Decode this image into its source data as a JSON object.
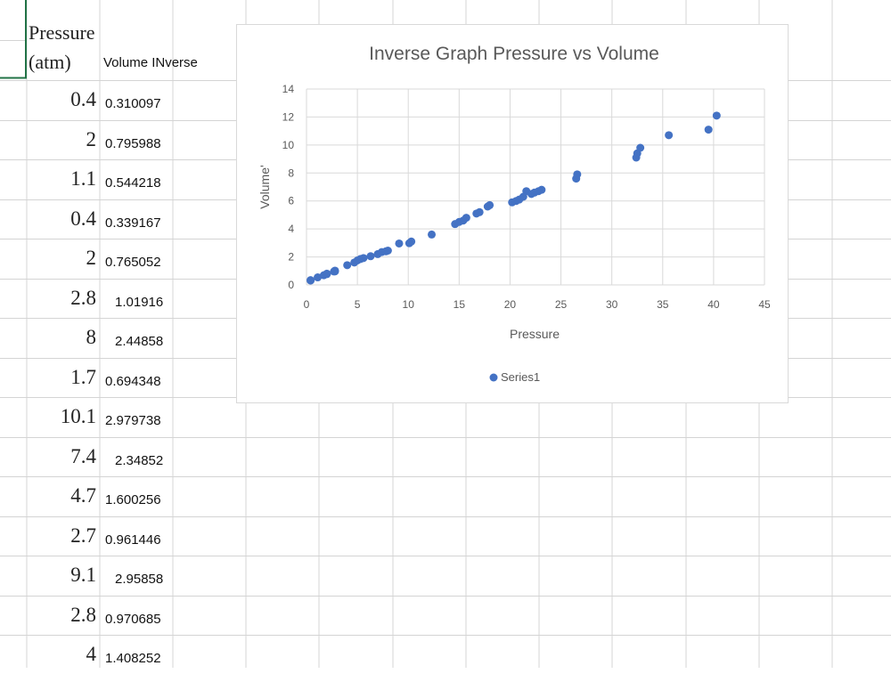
{
  "sheet": {
    "header_a": "Pressure (atm)",
    "header_b": "Volume INverse",
    "rows": [
      {
        "pressure": "0.4",
        "volume_inverse": "0.310097"
      },
      {
        "pressure": "2",
        "volume_inverse": "0.795988"
      },
      {
        "pressure": "1.1",
        "volume_inverse": "0.544218"
      },
      {
        "pressure": "0.4",
        "volume_inverse": "0.339167"
      },
      {
        "pressure": "2",
        "volume_inverse": "0.765052"
      },
      {
        "pressure": "2.8",
        "volume_inverse": "1.01916"
      },
      {
        "pressure": "8",
        "volume_inverse": "2.44858"
      },
      {
        "pressure": "1.7",
        "volume_inverse": "0.694348"
      },
      {
        "pressure": "10.1",
        "volume_inverse": "2.979738"
      },
      {
        "pressure": "7.4",
        "volume_inverse": "2.34852"
      },
      {
        "pressure": "4.7",
        "volume_inverse": "1.600256"
      },
      {
        "pressure": "2.7",
        "volume_inverse": "0.961446"
      },
      {
        "pressure": "9.1",
        "volume_inverse": "2.95858"
      },
      {
        "pressure": "2.8",
        "volume_inverse": "0.970685"
      },
      {
        "pressure": "4",
        "volume_inverse": "1.408252"
      }
    ]
  },
  "chart_data": {
    "type": "scatter",
    "title": "Inverse Graph Pressure vs Volume",
    "xlabel": "Pressure",
    "ylabel": "Volume'",
    "xlim": [
      0,
      45
    ],
    "ylim": [
      0,
      14
    ],
    "xticks": [
      0,
      5,
      10,
      15,
      20,
      25,
      30,
      35,
      40,
      45
    ],
    "yticks": [
      0,
      2,
      4,
      6,
      8,
      10,
      12,
      14
    ],
    "grid": true,
    "legend_position": "bottom",
    "series": [
      {
        "name": "Series1",
        "color": "#4472c4",
        "x": [
          0.4,
          0.4,
          1.1,
          1.7,
          2.0,
          2.0,
          2.7,
          2.8,
          2.8,
          4.0,
          4.7,
          5.0,
          5.3,
          5.6,
          6.3,
          7.0,
          7.4,
          7.8,
          8.0,
          9.1,
          10.1,
          10.3,
          12.3,
          14.6,
          15.0,
          15.4,
          15.7,
          16.7,
          17.0,
          17.8,
          18.0,
          20.2,
          20.6,
          20.9,
          21.3,
          21.6,
          22.1,
          22.4,
          22.8,
          23.1,
          26.5,
          26.6,
          32.4,
          32.5,
          32.8,
          35.6,
          39.5,
          40.3
        ],
        "y": [
          0.31,
          0.34,
          0.54,
          0.69,
          0.77,
          0.8,
          0.96,
          0.97,
          1.02,
          1.41,
          1.6,
          1.75,
          1.85,
          1.92,
          2.05,
          2.2,
          2.35,
          2.4,
          2.45,
          2.96,
          2.98,
          3.1,
          3.6,
          4.35,
          4.5,
          4.6,
          4.8,
          5.1,
          5.2,
          5.6,
          5.7,
          5.9,
          6.0,
          6.1,
          6.3,
          6.7,
          6.5,
          6.6,
          6.7,
          6.8,
          7.6,
          7.9,
          9.1,
          9.4,
          9.8,
          10.7,
          11.1,
          12.1
        ]
      }
    ]
  }
}
